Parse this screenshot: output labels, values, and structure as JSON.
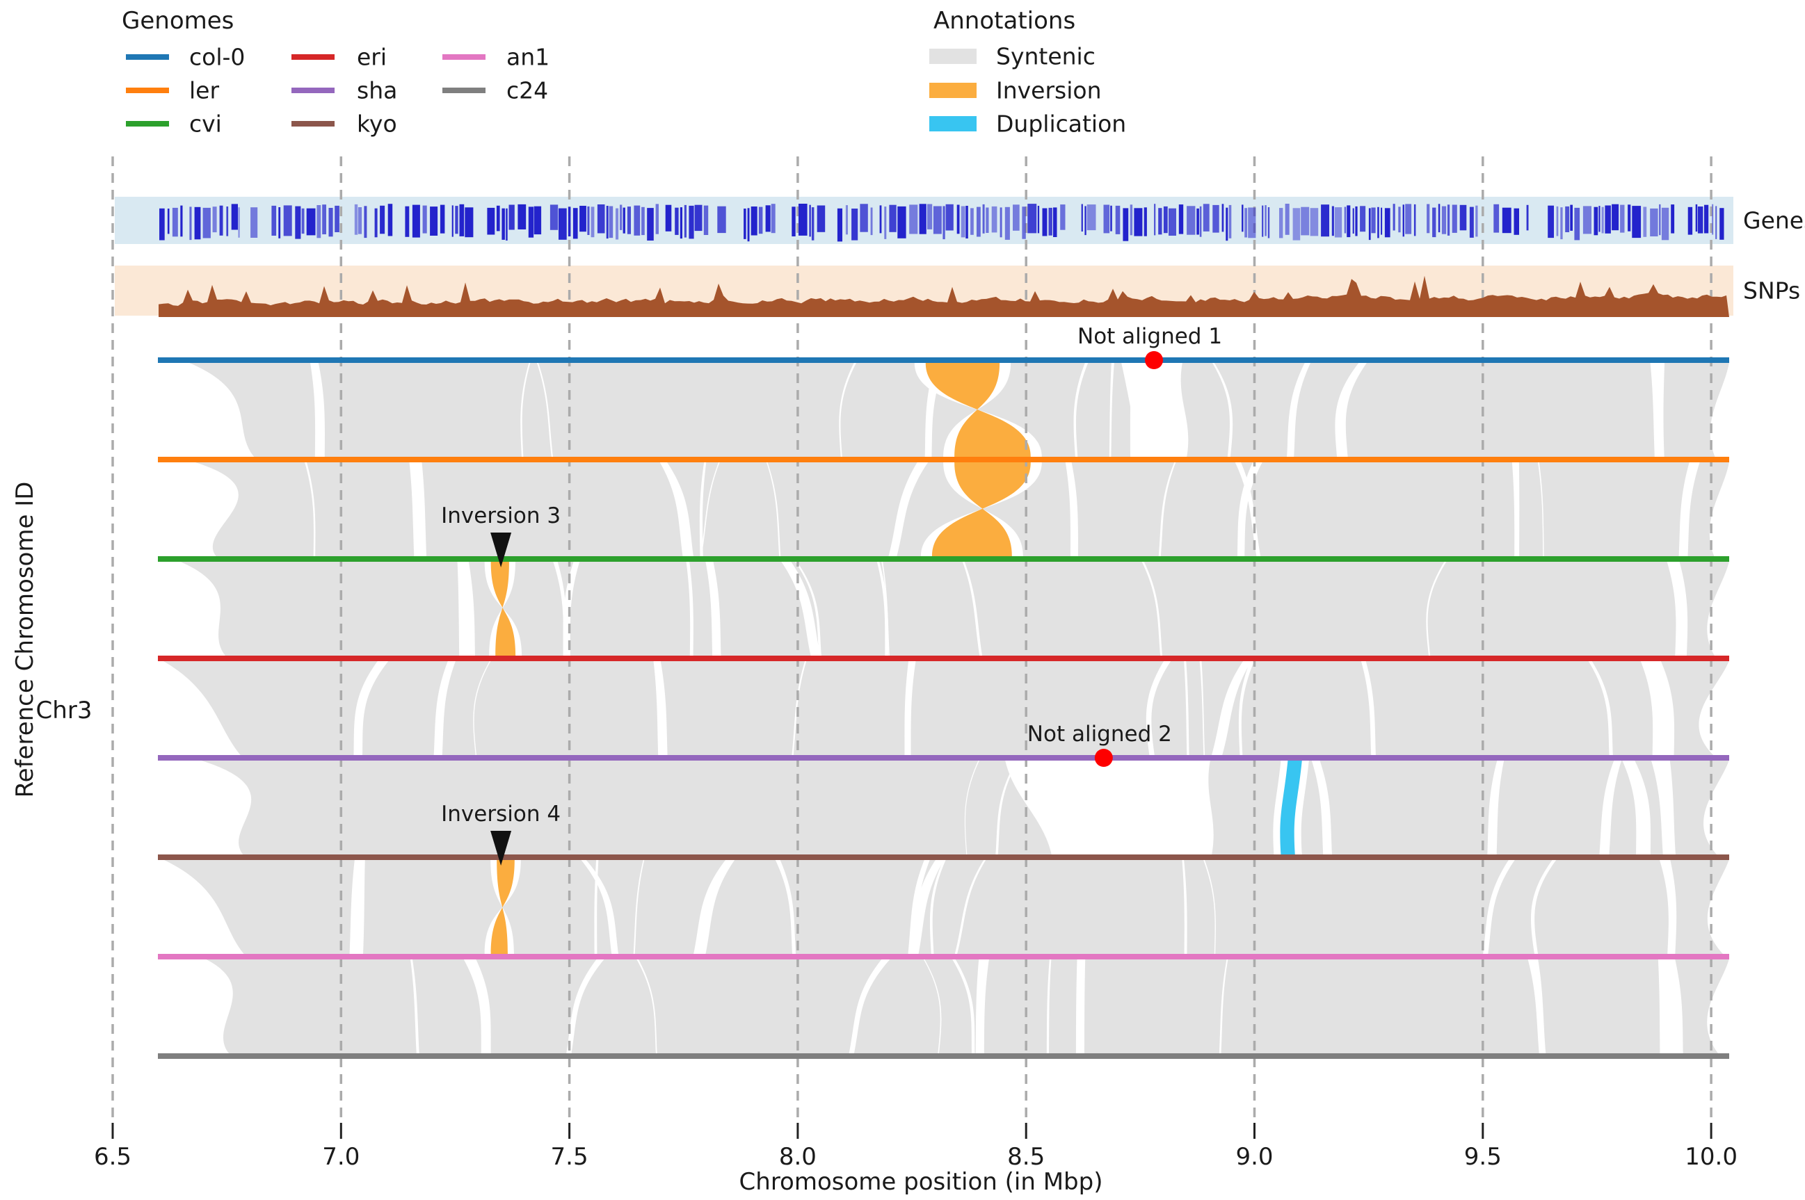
{
  "axis": {
    "xlabel": "Chromosome position (in Mbp)",
    "ylabel": "Reference Chromosome ID",
    "chromosome": "Chr3",
    "x_ticks": [
      "6.5",
      "7.0",
      "7.5",
      "8.0",
      "8.5",
      "9.0",
      "9.5",
      "10.0"
    ],
    "x_tick_values": [
      6.5,
      7.0,
      7.5,
      8.0,
      8.5,
      9.0,
      9.5,
      10.0
    ]
  },
  "legend_genomes": {
    "title": "Genomes",
    "items": [
      {
        "label": "col-0",
        "color": "#1f77b4"
      },
      {
        "label": "ler",
        "color": "#ff7f0e"
      },
      {
        "label": "cvi",
        "color": "#2ca02c"
      },
      {
        "label": "eri",
        "color": "#d62728"
      },
      {
        "label": "sha",
        "color": "#9467bd"
      },
      {
        "label": "kyo",
        "color": "#8c564b"
      },
      {
        "label": "an1",
        "color": "#e377c2"
      },
      {
        "label": "c24",
        "color": "#7f7f7f"
      }
    ]
  },
  "legend_annotations": {
    "title": "Annotations",
    "items": [
      {
        "label": "Syntenic",
        "color": "#e2e2e2"
      },
      {
        "label": "Inversion",
        "color": "#FBAD3F"
      },
      {
        "label": "Duplication",
        "color": "#38C5F1"
      }
    ]
  },
  "tracks": {
    "genes": {
      "label": "Genes",
      "bg": "#d9e9f2",
      "bar_color": "#2323cc"
    },
    "snps": {
      "label": "SNPs",
      "bg": "#fbe8d6",
      "fill": "#a5542c"
    }
  },
  "genomes": [
    {
      "name": "col-0",
      "color": "#1f77b4"
    },
    {
      "name": "ler",
      "color": "#ff7f0e"
    },
    {
      "name": "cvi",
      "color": "#2ca02c"
    },
    {
      "name": "eri",
      "color": "#d62728"
    },
    {
      "name": "sha",
      "color": "#9467bd"
    },
    {
      "name": "kyo",
      "color": "#8c564b"
    },
    {
      "name": "an1",
      "color": "#e377c2"
    },
    {
      "name": "c24",
      "color": "#7f7f7f"
    }
  ],
  "annotations": [
    {
      "type": "not_aligned",
      "label": "Not aligned 1",
      "genome": "col-0",
      "pos_mbp": 8.78
    },
    {
      "type": "inversion_marker",
      "label": "Inversion 3",
      "genome": "cvi",
      "pos_mbp": 7.35
    },
    {
      "type": "not_aligned",
      "label": "Not aligned 2",
      "genome": "sha",
      "pos_mbp": 8.67
    },
    {
      "type": "inversion_marker",
      "label": "Inversion 4",
      "genome": "kyo",
      "pos_mbp": 7.35
    }
  ],
  "colors": {
    "syntenic": "#e2e2e2",
    "inversion": "#FBAD3F",
    "duplication": "#38C5F1",
    "not_aligned_dot": "#fe0000",
    "gridline": "#ababab",
    "text": "#1a1a1a"
  },
  "chart_data": {
    "type": "synteny-plot",
    "style": "plotsr multi-genome synteny figure",
    "reference_chromosome": "Chr3",
    "xlabel": "Chromosome position (in Mbp)",
    "ylabel": "Reference Chromosome ID",
    "x_ticks_mbp": [
      6.5,
      7.0,
      7.5,
      8.0,
      8.5,
      9.0,
      9.5,
      10.0
    ],
    "x_range_mbp": [
      6.5,
      10.05
    ],
    "chromosome_span_mbp": [
      6.6,
      10.04
    ],
    "genomes_top_to_bottom": [
      "col-0",
      "ler",
      "cvi",
      "eri",
      "sha",
      "kyo",
      "an1",
      "c24"
    ],
    "tracks": [
      {
        "name": "Genes",
        "style": "dense blue gene-position bars on light blue band"
      },
      {
        "name": "SNPs",
        "style": "brown SNP-density area chart on peach band"
      }
    ],
    "legend_annotation_classes": [
      "Syntenic",
      "Inversion",
      "Duplication"
    ],
    "events": [
      {
        "type": "inversion",
        "between": [
          "col-0",
          "ler"
        ],
        "ref_span_mbp": [
          8.28,
          8.44
        ],
        "qry_span_mbp": [
          8.34,
          8.51
        ]
      },
      {
        "type": "inversion",
        "between": [
          "ler",
          "cvi"
        ],
        "ref_span_mbp": [
          8.34,
          8.51
        ],
        "qry_span_mbp": [
          8.29,
          8.47
        ]
      },
      {
        "type": "inversion",
        "label": "Inversion 3",
        "between": [
          "cvi",
          "eri"
        ],
        "ref_span_mbp": [
          7.33,
          7.37
        ],
        "qry_span_mbp": [
          7.34,
          7.38
        ]
      },
      {
        "type": "inversion",
        "label": "Inversion 4",
        "between": [
          "kyo",
          "an1"
        ],
        "ref_span_mbp": [
          7.34,
          7.38
        ],
        "qry_span_mbp": [
          7.33,
          7.37
        ]
      },
      {
        "type": "duplication",
        "between": [
          "sha",
          "kyo"
        ],
        "span_mbp": [
          9.07,
          9.1
        ]
      },
      {
        "type": "not_aligned",
        "label": "Not aligned 1",
        "genome": "col-0",
        "pos_mbp": 8.78,
        "gap_span_mbp": [
          8.71,
          8.84
        ]
      },
      {
        "type": "not_aligned",
        "label": "Not aligned 2",
        "genome": "sha",
        "pos_mbp": 8.67,
        "gap_span_mbp": [
          8.45,
          8.9
        ]
      }
    ]
  }
}
